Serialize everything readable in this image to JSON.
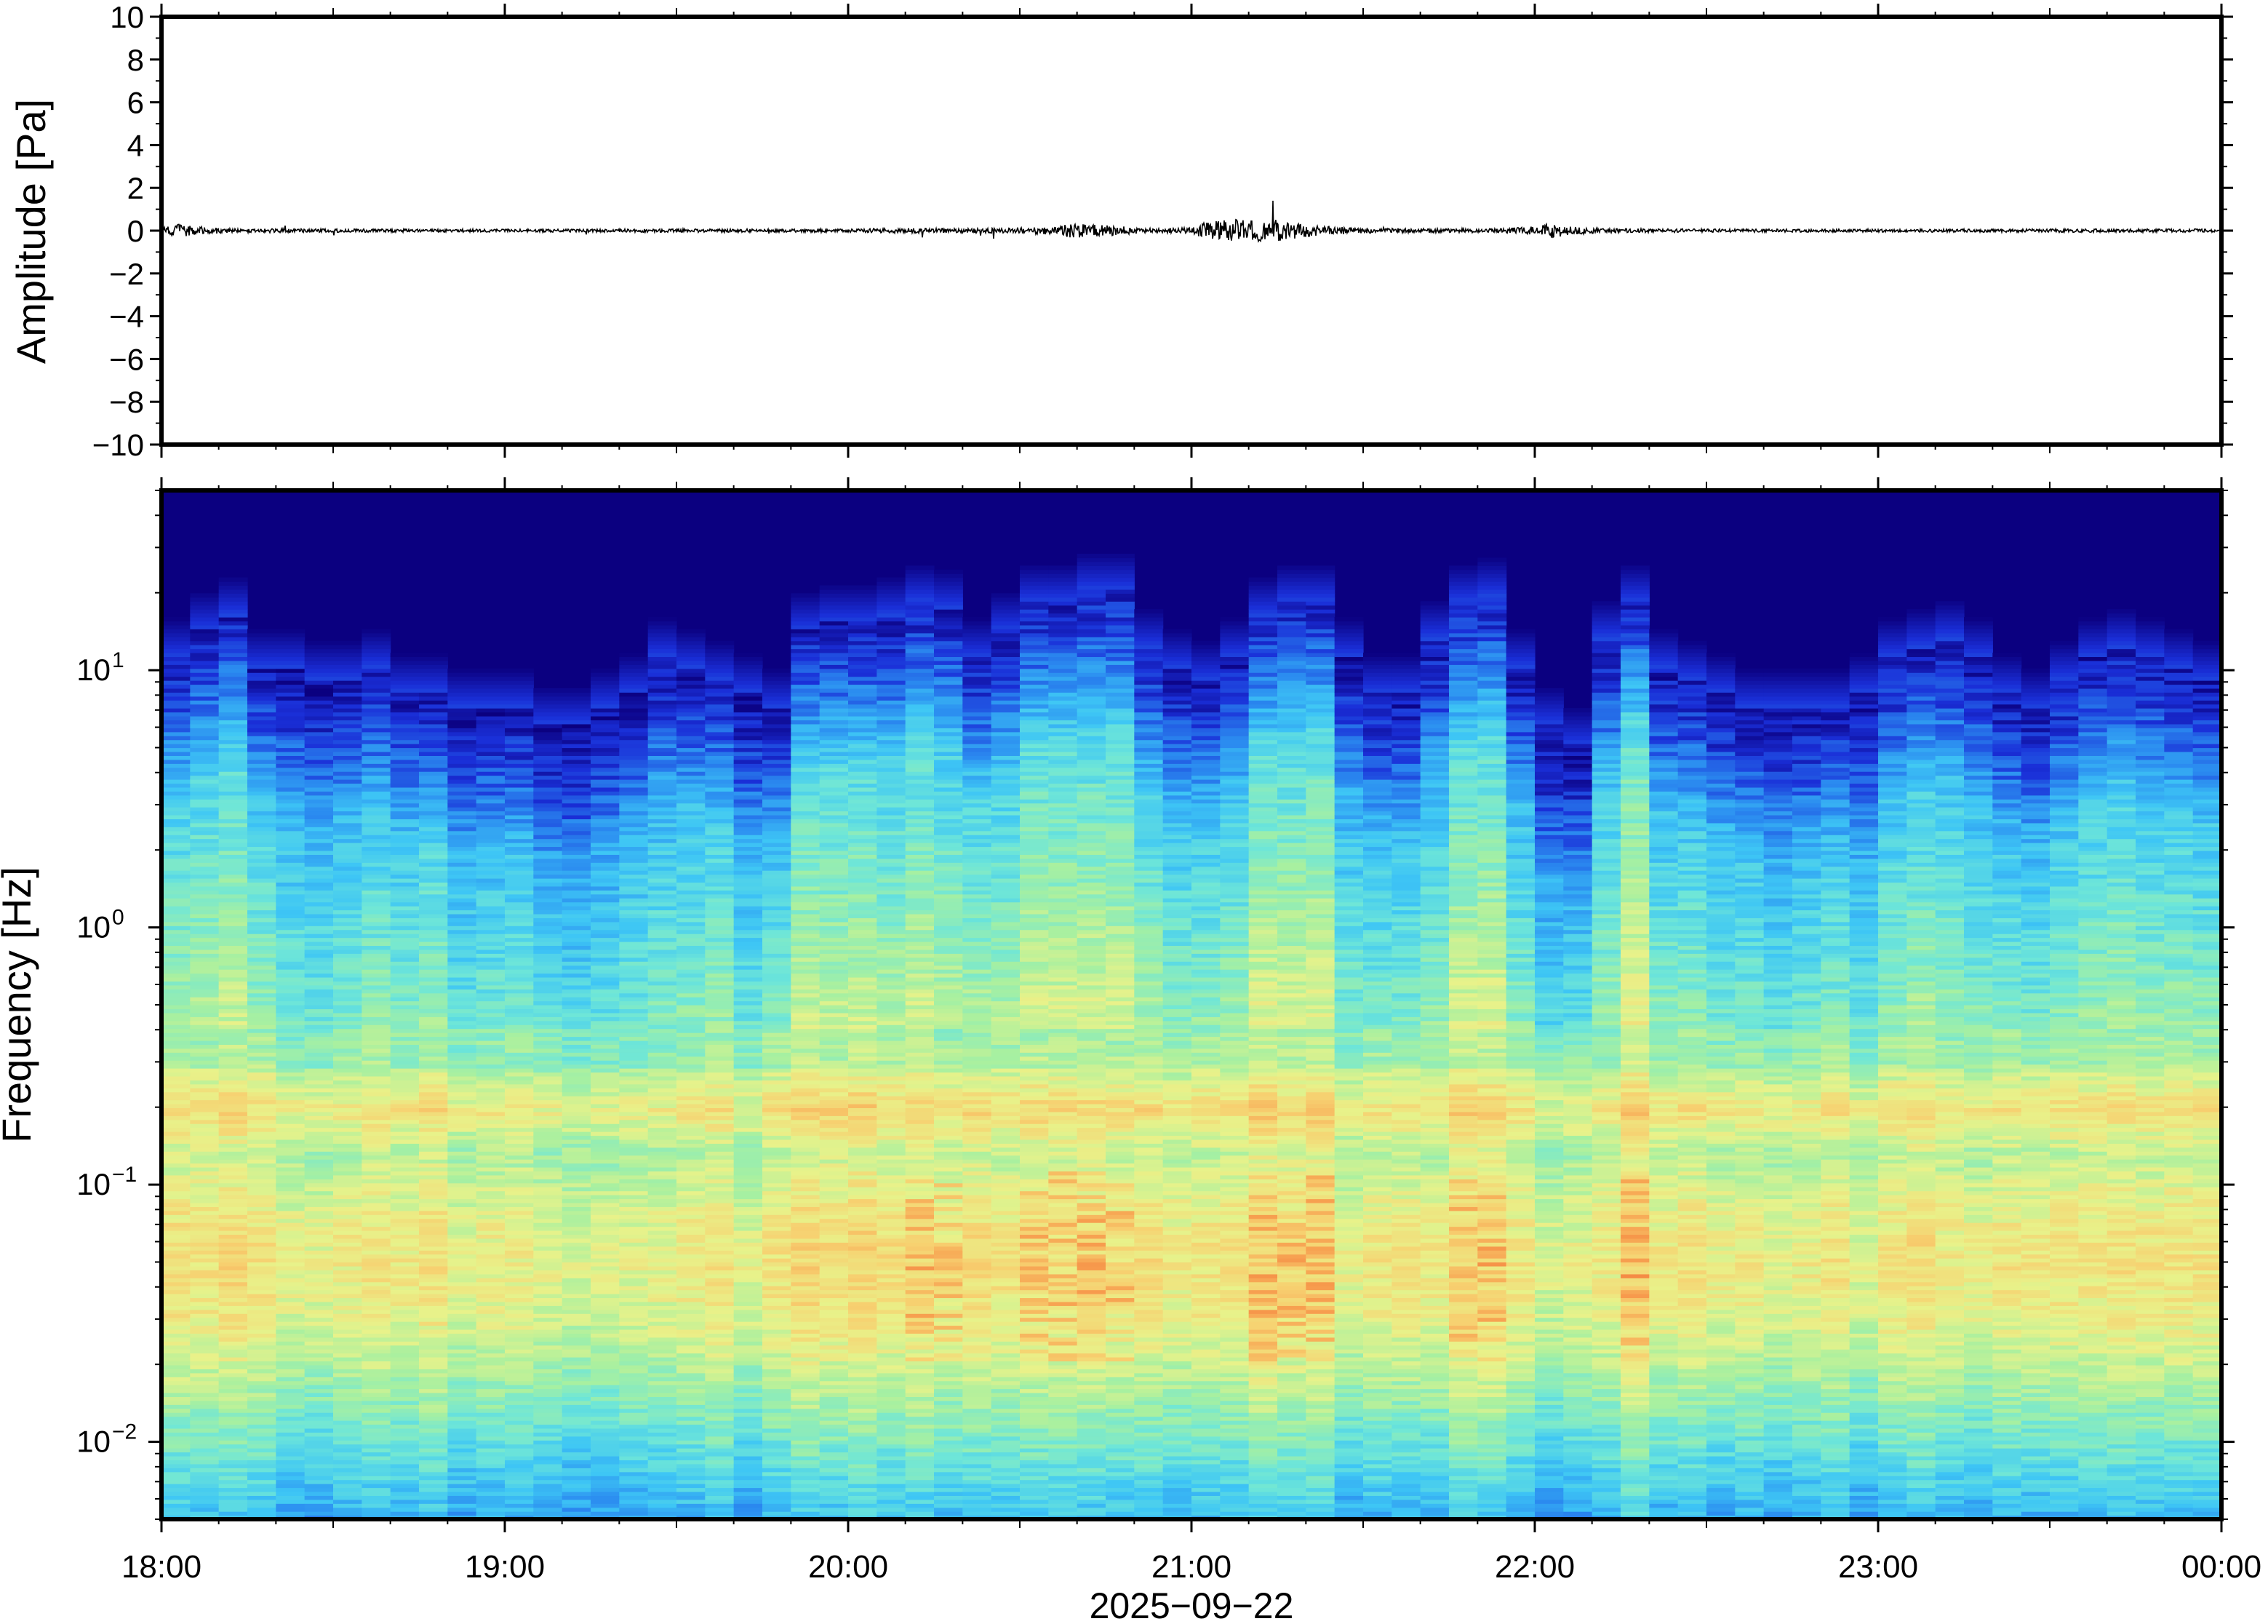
{
  "chart_data": [
    {
      "type": "line",
      "ylabel": "Amplitude [Pa]",
      "ylim": [
        -10,
        10
      ],
      "yticks": [
        "10",
        "8",
        "6",
        "4",
        "2",
        "0",
        "−2",
        "−4",
        "−6",
        "−8",
        "−10"
      ],
      "ytick_values": [
        10,
        8,
        6,
        4,
        2,
        0,
        -2,
        -4,
        -6,
        -8,
        -10
      ],
      "xlim_hours": [
        18,
        24
      ],
      "series": [
        {
          "color": "#000000",
          "baseline": 0,
          "envelope": {
            "hours": [
              18.0,
              18.05,
              18.1,
              18.2,
              18.5,
              19.0,
              19.5,
              20.0,
              20.15,
              20.3,
              20.5,
              20.6,
              20.65,
              20.75,
              20.9,
              21.0,
              21.05,
              21.15,
              21.25,
              21.35,
              21.5,
              21.7,
              21.9,
              22.0,
              22.05,
              22.1,
              22.2,
              22.5,
              23.0,
              23.5,
              24.0
            ],
            "amplitude_pa": [
              0.12,
              0.3,
              0.2,
              0.1,
              0.08,
              0.07,
              0.08,
              0.08,
              0.12,
              0.1,
              0.15,
              0.18,
              0.35,
              0.25,
              0.1,
              0.15,
              0.45,
              0.55,
              0.5,
              0.25,
              0.12,
              0.1,
              0.1,
              0.2,
              0.35,
              0.2,
              0.1,
              0.08,
              0.07,
              0.08,
              0.08
            ]
          }
        }
      ]
    },
    {
      "type": "heatmap",
      "ylabel": "Frequency [Hz]",
      "xlabel": "2025−09−22",
      "yscale": "log",
      "ylim_hz": [
        0.005,
        50
      ],
      "yticks_hz": [
        0.01,
        0.1,
        1,
        10
      ],
      "yticks": [
        {
          "base": "10",
          "exp": "−2"
        },
        {
          "base": "10",
          "exp": "−1"
        },
        {
          "base": "10",
          "exp": "0"
        },
        {
          "base": "10",
          "exp": "1"
        }
      ],
      "xticks": [
        "18:00",
        "19:00",
        "20:00",
        "21:00",
        "22:00",
        "23:00",
        "00:00"
      ],
      "xtick_hours": [
        18,
        19,
        20,
        21,
        22,
        23,
        24
      ],
      "colormap": [
        "#0b0080",
        "#1a2fd8",
        "#2b8cf0",
        "#3ec6f5",
        "#6ee6d8",
        "#a8f0a0",
        "#e8f28a",
        "#f7d070",
        "#f7a050",
        "#f47a3c"
      ],
      "column_minutes": 5,
      "upper_cutoff_hz": [
        11,
        14,
        16,
        10,
        10,
        9,
        9,
        10,
        8,
        8,
        7,
        7,
        7,
        6,
        6,
        7,
        8,
        11,
        10,
        9,
        8,
        7,
        14,
        15,
        15,
        16,
        18,
        17,
        11,
        14,
        18,
        18,
        20,
        20,
        12,
        10,
        9,
        11,
        16,
        18,
        18,
        11,
        8,
        8,
        13,
        18,
        19,
        10,
        6,
        5,
        13,
        18,
        10,
        9,
        8,
        7,
        7,
        7,
        7,
        8,
        11,
        12,
        13,
        11,
        8,
        7,
        9,
        11,
        12,
        11,
        10,
        9
      ],
      "activity": [
        0.55,
        0.7,
        0.75,
        0.5,
        0.5,
        0.45,
        0.4,
        0.5,
        0.45,
        0.45,
        0.35,
        0.35,
        0.4,
        0.3,
        0.3,
        0.35,
        0.45,
        0.55,
        0.5,
        0.5,
        0.4,
        0.35,
        0.7,
        0.75,
        0.7,
        0.7,
        0.8,
        0.8,
        0.6,
        0.7,
        0.9,
        0.9,
        0.9,
        0.95,
        0.6,
        0.5,
        0.45,
        0.55,
        0.8,
        0.85,
        0.85,
        0.55,
        0.35,
        0.35,
        0.6,
        0.8,
        0.85,
        0.45,
        0.25,
        0.2,
        0.65,
        0.9,
        0.5,
        0.45,
        0.4,
        0.35,
        0.35,
        0.35,
        0.35,
        0.4,
        0.5,
        0.55,
        0.6,
        0.55,
        0.35,
        0.3,
        0.45,
        0.55,
        0.6,
        0.55,
        0.5,
        0.45
      ]
    }
  ]
}
